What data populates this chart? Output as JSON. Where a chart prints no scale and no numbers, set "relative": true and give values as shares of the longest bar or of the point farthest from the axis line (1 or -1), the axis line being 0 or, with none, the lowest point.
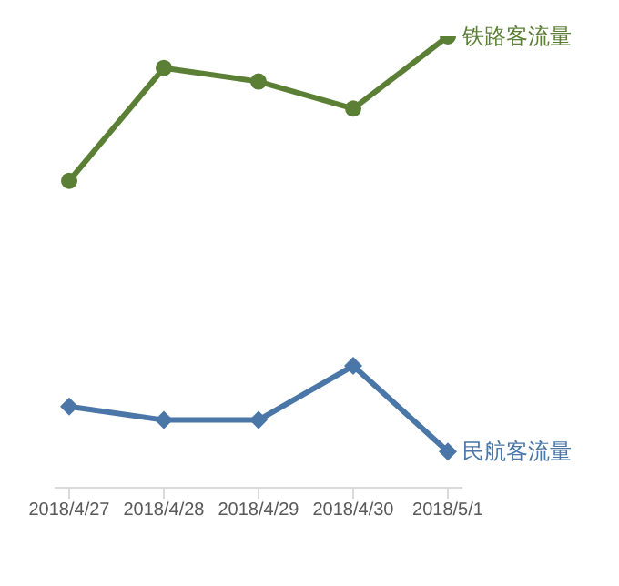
{
  "chart_data": {
    "type": "line",
    "relative": true,
    "categories": [
      "2018/4/27",
      "2018/4/28",
      "2018/4/29",
      "2018/4/30",
      "2018/5/1"
    ],
    "series": [
      {
        "name": "铁路客流量",
        "color": "#5b7f35",
        "marker": "circle",
        "values": [
          0.68,
          0.93,
          0.9,
          0.84,
          1
        ]
      },
      {
        "name": "民航客流量",
        "color": "#4a76a8",
        "marker": "diamond",
        "values": [
          0.18,
          0.15,
          0.15,
          0.27,
          0.08
        ]
      }
    ],
    "grid": false
  }
}
